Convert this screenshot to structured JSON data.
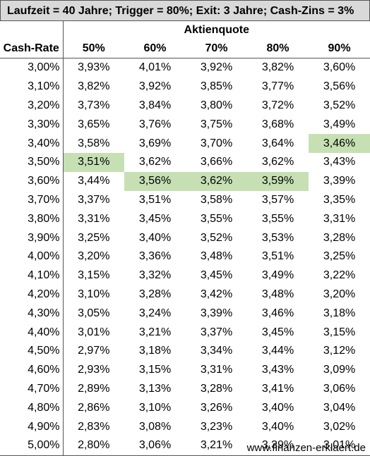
{
  "title": "Laufzeit = 40 Jahre; Trigger = 80%; Exit: 3 Jahre; Cash-Zins = 3%",
  "group_header": "Aktienquote",
  "row_header": "Cash-Rate",
  "columns": [
    "50%",
    "60%",
    "70%",
    "80%",
    "90%"
  ],
  "highlight_color": "#c6e0b4",
  "rows": [
    {
      "rate": "3,00%",
      "values": [
        "3,93%",
        "4,01%",
        "3,92%",
        "3,82%",
        "3,60%"
      ],
      "highlight": [
        false,
        false,
        false,
        false,
        false
      ]
    },
    {
      "rate": "3,10%",
      "values": [
        "3,82%",
        "3,92%",
        "3,85%",
        "3,77%",
        "3,56%"
      ],
      "highlight": [
        false,
        false,
        false,
        false,
        false
      ]
    },
    {
      "rate": "3,20%",
      "values": [
        "3,73%",
        "3,84%",
        "3,80%",
        "3,72%",
        "3,52%"
      ],
      "highlight": [
        false,
        false,
        false,
        false,
        false
      ]
    },
    {
      "rate": "3,30%",
      "values": [
        "3,65%",
        "3,76%",
        "3,75%",
        "3,68%",
        "3,49%"
      ],
      "highlight": [
        false,
        false,
        false,
        false,
        false
      ]
    },
    {
      "rate": "3,40%",
      "values": [
        "3,58%",
        "3,69%",
        "3,70%",
        "3,64%",
        "3,46%"
      ],
      "highlight": [
        false,
        false,
        false,
        false,
        true
      ]
    },
    {
      "rate": "3,50%",
      "values": [
        "3,51%",
        "3,62%",
        "3,66%",
        "3,62%",
        "3,43%"
      ],
      "highlight": [
        true,
        false,
        false,
        false,
        false
      ]
    },
    {
      "rate": "3,60%",
      "values": [
        "3,44%",
        "3,56%",
        "3,62%",
        "3,59%",
        "3,39%"
      ],
      "highlight": [
        false,
        true,
        true,
        true,
        false
      ]
    },
    {
      "rate": "3,70%",
      "values": [
        "3,37%",
        "3,51%",
        "3,58%",
        "3,57%",
        "3,35%"
      ],
      "highlight": [
        false,
        false,
        false,
        false,
        false
      ]
    },
    {
      "rate": "3,80%",
      "values": [
        "3,31%",
        "3,45%",
        "3,55%",
        "3,55%",
        "3,31%"
      ],
      "highlight": [
        false,
        false,
        false,
        false,
        false
      ]
    },
    {
      "rate": "3,90%",
      "values": [
        "3,25%",
        "3,40%",
        "3,52%",
        "3,53%",
        "3,28%"
      ],
      "highlight": [
        false,
        false,
        false,
        false,
        false
      ]
    },
    {
      "rate": "4,00%",
      "values": [
        "3,20%",
        "3,36%",
        "3,48%",
        "3,51%",
        "3,25%"
      ],
      "highlight": [
        false,
        false,
        false,
        false,
        false
      ]
    },
    {
      "rate": "4,10%",
      "values": [
        "3,15%",
        "3,32%",
        "3,45%",
        "3,49%",
        "3,22%"
      ],
      "highlight": [
        false,
        false,
        false,
        false,
        false
      ]
    },
    {
      "rate": "4,20%",
      "values": [
        "3,10%",
        "3,28%",
        "3,42%",
        "3,48%",
        "3,20%"
      ],
      "highlight": [
        false,
        false,
        false,
        false,
        false
      ]
    },
    {
      "rate": "4,30%",
      "values": [
        "3,05%",
        "3,24%",
        "3,39%",
        "3,46%",
        "3,18%"
      ],
      "highlight": [
        false,
        false,
        false,
        false,
        false
      ]
    },
    {
      "rate": "4,40%",
      "values": [
        "3,01%",
        "3,21%",
        "3,37%",
        "3,45%",
        "3,15%"
      ],
      "highlight": [
        false,
        false,
        false,
        false,
        false
      ]
    },
    {
      "rate": "4,50%",
      "values": [
        "2,97%",
        "3,18%",
        "3,34%",
        "3,44%",
        "3,12%"
      ],
      "highlight": [
        false,
        false,
        false,
        false,
        false
      ]
    },
    {
      "rate": "4,60%",
      "values": [
        "2,93%",
        "3,15%",
        "3,31%",
        "3,43%",
        "3,09%"
      ],
      "highlight": [
        false,
        false,
        false,
        false,
        false
      ]
    },
    {
      "rate": "4,70%",
      "values": [
        "2,89%",
        "3,13%",
        "3,28%",
        "3,41%",
        "3,06%"
      ],
      "highlight": [
        false,
        false,
        false,
        false,
        false
      ]
    },
    {
      "rate": "4,80%",
      "values": [
        "2,86%",
        "3,10%",
        "3,26%",
        "3,40%",
        "3,04%"
      ],
      "highlight": [
        false,
        false,
        false,
        false,
        false
      ]
    },
    {
      "rate": "4,90%",
      "values": [
        "2,83%",
        "3,08%",
        "3,23%",
        "3,40%",
        "3,02%"
      ],
      "highlight": [
        false,
        false,
        false,
        false,
        false
      ]
    },
    {
      "rate": "5,00%",
      "values": [
        "2,80%",
        "3,06%",
        "3,21%",
        "3,39%",
        "3,01%"
      ],
      "highlight": [
        false,
        false,
        false,
        false,
        false
      ]
    }
  ],
  "footer": "www.finanzen-erklaert.de"
}
